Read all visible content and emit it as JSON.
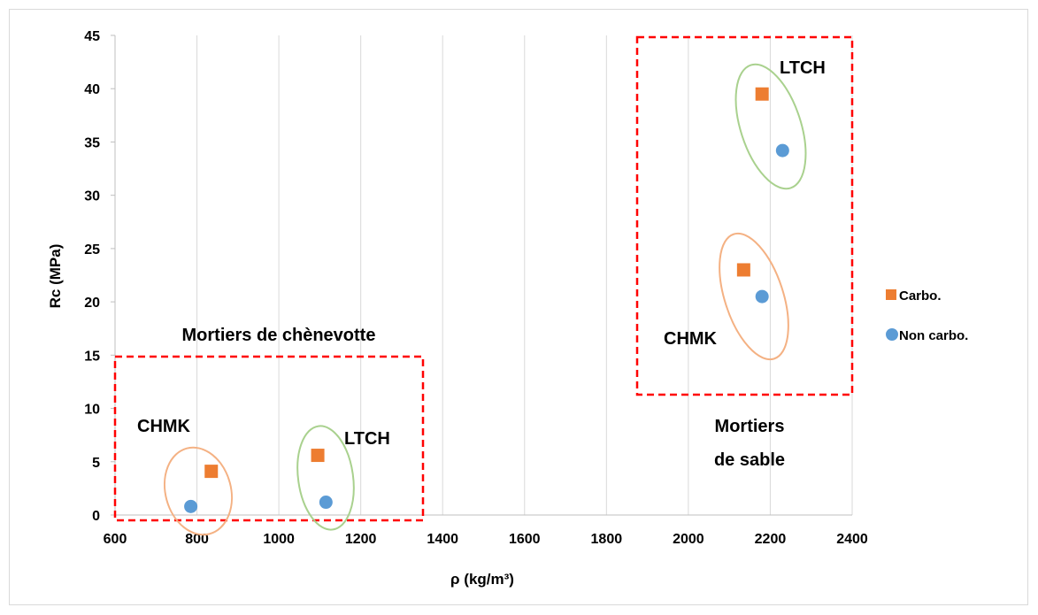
{
  "colors": {
    "carbo": "#ed7d31",
    "non_carbo": "#5b9bd5",
    "box": "#ff0000",
    "ellipse_orange": "#f4b183",
    "ellipse_green": "#a9d18e",
    "gridline": "#d9d9d9"
  },
  "chart_data": {
    "type": "scatter",
    "title": "",
    "xlabel": "ρ (kg/m³)",
    "ylabel": "Rc (MPa)",
    "xlim": [
      600,
      2400
    ],
    "ylim": [
      0,
      45
    ],
    "xticks": [
      600,
      800,
      1000,
      1200,
      1400,
      1600,
      1800,
      2000,
      2200,
      2400
    ],
    "yticks": [
      0,
      5,
      10,
      15,
      20,
      25,
      30,
      35,
      40,
      45
    ],
    "grid": "vertical",
    "legend_position": "right",
    "series": [
      {
        "name": "Carbo.",
        "marker": "square",
        "points": [
          {
            "x": 835,
            "y": 4.1
          },
          {
            "x": 1095,
            "y": 5.6
          },
          {
            "x": 2135,
            "y": 23.0
          },
          {
            "x": 2180,
            "y": 39.5
          }
        ]
      },
      {
        "name": "Non carbo.",
        "marker": "circle",
        "points": [
          {
            "x": 785,
            "y": 0.8
          },
          {
            "x": 1115,
            "y": 1.2
          },
          {
            "x": 2180,
            "y": 20.5
          },
          {
            "x": 2230,
            "y": 34.2
          }
        ]
      }
    ],
    "group_labels": [
      "Mortiers de chènevotte",
      "Mortiers",
      "de sable"
    ],
    "annotations": [
      "CHMK",
      "LTCH",
      "CHMK",
      "LTCH"
    ]
  }
}
